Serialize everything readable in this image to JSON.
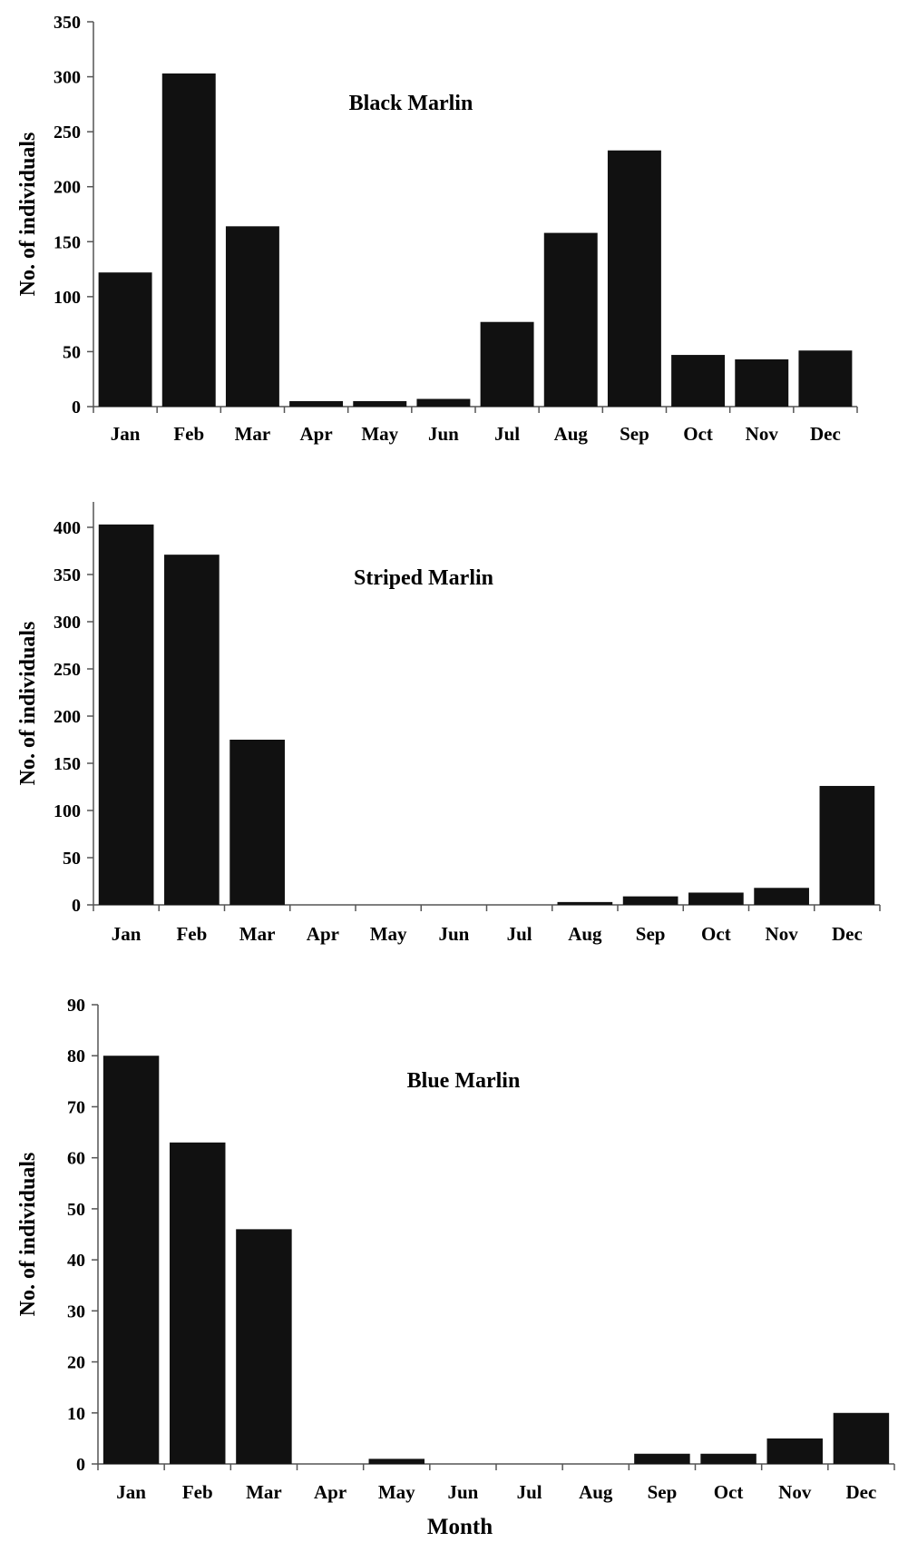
{
  "figure": {
    "xlabel": "Month"
  },
  "chart_data": [
    {
      "type": "bar",
      "title": "Black Marlin",
      "ylabel": "No. of individuals",
      "xlabel": "",
      "categories": [
        "Jan",
        "Feb",
        "Mar",
        "Apr",
        "May",
        "Jun",
        "Jul",
        "Aug",
        "Sep",
        "Oct",
        "Nov",
        "Dec"
      ],
      "values": [
        122,
        303,
        164,
        5,
        5,
        7,
        77,
        158,
        233,
        47,
        43,
        51
      ],
      "ylim": [
        0,
        350
      ],
      "yticks": [
        0,
        50,
        100,
        150,
        200,
        250,
        300,
        350
      ],
      "bar_color": "#111111",
      "grid": false
    },
    {
      "type": "bar",
      "title": "Striped Marlin",
      "ylabel": "No. of individuals",
      "xlabel": "",
      "categories": [
        "Jan",
        "Feb",
        "Mar",
        "Apr",
        "May",
        "Jun",
        "Jul",
        "Aug",
        "Sep",
        "Oct",
        "Nov",
        "Dec"
      ],
      "values": [
        403,
        371,
        175,
        0,
        0,
        0,
        0,
        3,
        9,
        13,
        18,
        126
      ],
      "ylim": [
        0,
        425
      ],
      "yticks": [
        0,
        50,
        100,
        150,
        200,
        250,
        300,
        350,
        400
      ],
      "bar_color": "#111111",
      "grid": false
    },
    {
      "type": "bar",
      "title": "Blue Marlin",
      "ylabel": "No. of individuals",
      "xlabel": "Month",
      "categories": [
        "Jan",
        "Feb",
        "Mar",
        "Apr",
        "May",
        "Jun",
        "Jul",
        "Aug",
        "Sep",
        "Oct",
        "Nov",
        "Dec"
      ],
      "values": [
        80,
        63,
        46,
        0,
        1,
        0,
        0,
        0,
        2,
        2,
        5,
        10
      ],
      "ylim": [
        0,
        90
      ],
      "yticks": [
        0,
        10,
        20,
        30,
        40,
        50,
        60,
        70,
        80,
        90
      ],
      "bar_color": "#111111",
      "grid": false
    }
  ]
}
